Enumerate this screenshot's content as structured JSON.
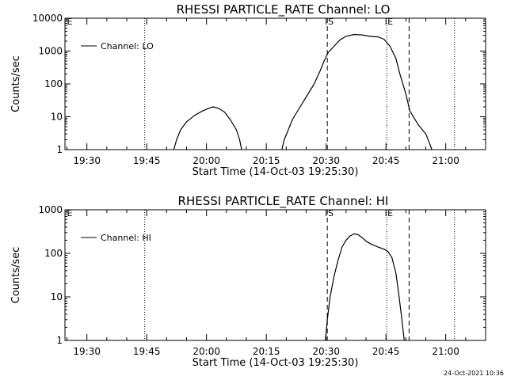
{
  "footer": {
    "timestamp": "24-Oct-2021 10:36"
  },
  "chart_data": [
    {
      "type": "line",
      "title": "RHESSI PARTICLE_RATE Channel: LO",
      "xlabel": "Start Time (14-Oct-03 19:25:30)",
      "ylabel": "Counts/sec",
      "yscale": "log",
      "ylim": [
        1,
        10000
      ],
      "xlim_minutes": [
        -5.5,
        100
      ],
      "x_unit": "minutes after 19:30",
      "x_ticks": [
        {
          "label": "19:30",
          "t": 0
        },
        {
          "label": "19:45",
          "t": 15
        },
        {
          "label": "20:00",
          "t": 30
        },
        {
          "label": "20:15",
          "t": 45
        },
        {
          "label": "20:30",
          "t": 60
        },
        {
          "label": "20:45",
          "t": 75
        },
        {
          "label": "21:00",
          "t": 90
        }
      ],
      "y_ticks": [
        {
          "label": "1",
          "v": 1
        },
        {
          "label": "10",
          "v": 10
        },
        {
          "label": "100",
          "v": 100
        },
        {
          "label": "1000",
          "v": 1000
        },
        {
          "label": "10000",
          "v": 10000
        }
      ],
      "legend": "Channel: LO",
      "markers": [
        {
          "label": "E",
          "t": -5.2,
          "style": "none"
        },
        {
          "label": "",
          "t": 14.5,
          "style": "dotted"
        },
        {
          "label": "S",
          "t": 60.3,
          "style": "dashed"
        },
        {
          "label": "E",
          "t": 75.2,
          "style": "dotted"
        },
        {
          "label": "",
          "t": 80.8,
          "style": "dashed"
        },
        {
          "label": "",
          "t": 92.2,
          "style": "dotted"
        }
      ],
      "series": [
        {
          "name": "Channel: LO",
          "segments": [
            [
              [
                21.8,
                1
              ],
              [
                22.5,
                2
              ],
              [
                23.5,
                4
              ],
              [
                25,
                7
              ],
              [
                27,
                11
              ],
              [
                29,
                15
              ],
              [
                30.5,
                18
              ],
              [
                31.7,
                20
              ],
              [
                33,
                18
              ],
              [
                34.5,
                14
              ],
              [
                36,
                8
              ],
              [
                37.5,
                4
              ],
              [
                38.3,
                2
              ],
              [
                38.8,
                1
              ]
            ],
            [
              [
                48.9,
                1
              ],
              [
                49.5,
                2
              ],
              [
                50.5,
                4
              ],
              [
                51.5,
                8
              ],
              [
                53,
                16
              ],
              [
                55,
                40
              ],
              [
                57,
                100
              ],
              [
                58.5,
                250
              ],
              [
                59.5,
                500
              ],
              [
                60.5,
                900
              ],
              [
                62,
                1400
              ],
              [
                63.5,
                2200
              ],
              [
                65,
                2800
              ],
              [
                67,
                3200
              ],
              [
                69,
                3100
              ],
              [
                71,
                2800
              ],
              [
                73,
                2700
              ],
              [
                74.5,
                2300
              ],
              [
                76,
                1400
              ],
              [
                77.5,
                600
              ],
              [
                78.5,
                200
              ],
              [
                80,
                50
              ],
              [
                81,
                15
              ],
              [
                83,
                6
              ],
              [
                85,
                3
              ],
              [
                86,
                1.5
              ],
              [
                86.5,
                1
              ]
            ]
          ]
        }
      ]
    },
    {
      "type": "line",
      "title": "RHESSI PARTICLE_RATE Channel: HI",
      "xlabel": "Start Time (14-Oct-03 19:25:30)",
      "ylabel": "Counts/sec",
      "yscale": "log",
      "ylim": [
        1,
        1000
      ],
      "xlim_minutes": [
        -5.5,
        100
      ],
      "x_unit": "minutes after 19:30",
      "x_ticks": [
        {
          "label": "19:30",
          "t": 0
        },
        {
          "label": "19:45",
          "t": 15
        },
        {
          "label": "20:00",
          "t": 30
        },
        {
          "label": "20:15",
          "t": 45
        },
        {
          "label": "20:30",
          "t": 60
        },
        {
          "label": "20:45",
          "t": 75
        },
        {
          "label": "21:00",
          "t": 90
        }
      ],
      "y_ticks": [
        {
          "label": "1",
          "v": 1
        },
        {
          "label": "10",
          "v": 10
        },
        {
          "label": "100",
          "v": 100
        },
        {
          "label": "1000",
          "v": 1000
        }
      ],
      "legend": "Channel: HI",
      "markers": [
        {
          "label": "E",
          "t": -5.2,
          "style": "none"
        },
        {
          "label": "",
          "t": 14.5,
          "style": "dotted"
        },
        {
          "label": "S",
          "t": 60.3,
          "style": "dashed"
        },
        {
          "label": "E",
          "t": 75.2,
          "style": "dotted"
        },
        {
          "label": "",
          "t": 80.8,
          "style": "dashed"
        },
        {
          "label": "",
          "t": 92.2,
          "style": "dotted"
        }
      ],
      "series": [
        {
          "name": "Channel: HI",
          "segments": [
            [
              [
                59.8,
                1
              ],
              [
                60.3,
                3
              ],
              [
                61,
                10
              ],
              [
                62,
                30
              ],
              [
                63,
                70
              ],
              [
                64,
                140
              ],
              [
                65,
                200
              ],
              [
                66,
                250
              ],
              [
                67,
                280
              ],
              [
                68,
                270
              ],
              [
                69,
                230
              ],
              [
                70,
                190
              ],
              [
                71.5,
                160
              ],
              [
                73,
                140
              ],
              [
                74.5,
                125
              ],
              [
                75.5,
                110
              ],
              [
                76.5,
                80
              ],
              [
                77.5,
                35
              ],
              [
                78.3,
                10
              ],
              [
                79,
                3
              ],
              [
                79.6,
                1
              ]
            ]
          ]
        }
      ]
    }
  ]
}
